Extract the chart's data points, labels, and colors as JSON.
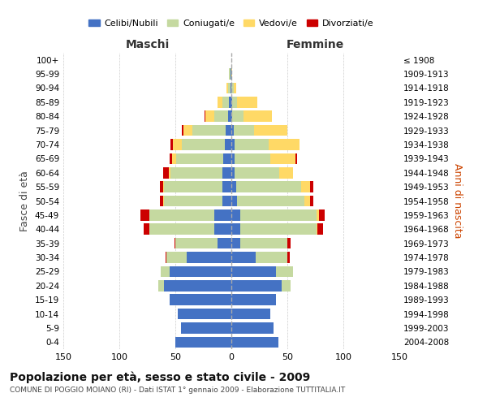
{
  "age_groups": [
    "0-4",
    "5-9",
    "10-14",
    "15-19",
    "20-24",
    "25-29",
    "30-34",
    "35-39",
    "40-44",
    "45-49",
    "50-54",
    "55-59",
    "60-64",
    "65-69",
    "70-74",
    "75-79",
    "80-84",
    "85-89",
    "90-94",
    "95-99",
    "100+"
  ],
  "birth_years": [
    "2004-2008",
    "1999-2003",
    "1994-1998",
    "1989-1993",
    "1984-1988",
    "1979-1983",
    "1974-1978",
    "1969-1973",
    "1964-1968",
    "1959-1963",
    "1954-1958",
    "1949-1953",
    "1944-1948",
    "1939-1943",
    "1934-1938",
    "1929-1933",
    "1924-1928",
    "1919-1923",
    "1914-1918",
    "1909-1913",
    "≤ 1908"
  ],
  "male": {
    "celibi": [
      50,
      45,
      48,
      55,
      60,
      55,
      40,
      12,
      15,
      15,
      8,
      8,
      8,
      7,
      6,
      5,
      3,
      2,
      1,
      1,
      0
    ],
    "coniugati": [
      0,
      0,
      0,
      0,
      5,
      8,
      18,
      38,
      58,
      58,
      52,
      52,
      46,
      42,
      38,
      30,
      12,
      6,
      2,
      1,
      0
    ],
    "vedovi": [
      0,
      0,
      0,
      0,
      0,
      0,
      0,
      0,
      0,
      0,
      1,
      1,
      2,
      4,
      8,
      8,
      8,
      4,
      1,
      0,
      0
    ],
    "divorziati": [
      0,
      0,
      0,
      0,
      0,
      0,
      1,
      1,
      5,
      8,
      3,
      3,
      5,
      2,
      2,
      1,
      1,
      0,
      0,
      0,
      0
    ]
  },
  "female": {
    "nubili": [
      42,
      38,
      35,
      40,
      45,
      40,
      22,
      8,
      8,
      8,
      5,
      4,
      3,
      3,
      3,
      2,
      1,
      1,
      0,
      0,
      0
    ],
    "coniugate": [
      0,
      0,
      0,
      0,
      8,
      15,
      28,
      42,
      68,
      68,
      60,
      58,
      40,
      32,
      30,
      18,
      10,
      4,
      2,
      0,
      0
    ],
    "vedove": [
      0,
      0,
      0,
      0,
      0,
      0,
      0,
      0,
      1,
      2,
      5,
      8,
      12,
      22,
      28,
      30,
      25,
      18,
      2,
      1,
      0
    ],
    "divorziate": [
      0,
      0,
      0,
      0,
      0,
      0,
      2,
      3,
      5,
      5,
      3,
      3,
      0,
      2,
      0,
      0,
      0,
      0,
      0,
      0,
      0
    ]
  },
  "colors": {
    "celibi": "#4472c4",
    "coniugati": "#c5d9a0",
    "vedovi": "#ffd966",
    "divorziati": "#cc0000"
  },
  "title": "Popolazione per età, sesso e stato civile - 2009",
  "subtitle": "COMUNE DI POGGIO MOIANO (RI) - Dati ISTAT 1° gennaio 2009 - Elaborazione TUTTITALIA.IT",
  "xlabel_left": "Maschi",
  "xlabel_right": "Femmine",
  "ylabel_left": "Fasce di età",
  "ylabel_right": "Anni di nascita",
  "xlim": 150,
  "legend_labels": [
    "Celibi/Nubili",
    "Coniugati/e",
    "Vedovi/e",
    "Divorziati/e"
  ],
  "bg_color": "#ffffff",
  "grid_color": "#cccccc"
}
